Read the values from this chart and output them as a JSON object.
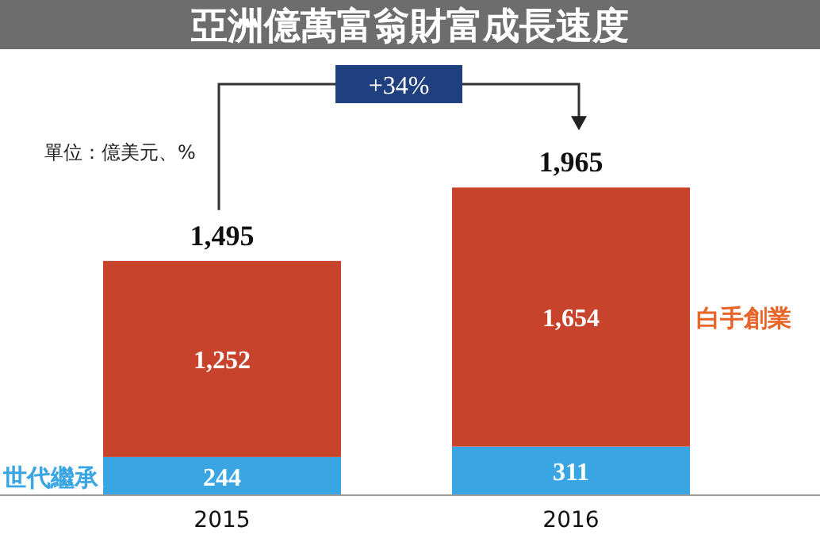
{
  "chart_data": {
    "type": "bar",
    "title": "亞洲億萬富翁財富成長速度",
    "subtitle": "單位：億美元、%",
    "categories": [
      "2015",
      "2016"
    ],
    "stacked": true,
    "series": [
      {
        "name": "世代繼承",
        "color": "#3aa5e3",
        "values": [
          244,
          311
        ],
        "value_labels": [
          "244",
          "311"
        ]
      },
      {
        "name": "白手創業",
        "color": "#c7432b",
        "values": [
          1252,
          1654
        ],
        "value_labels": [
          "1,252",
          "1,654"
        ]
      }
    ],
    "totals": [
      "1,495",
      "1,965"
    ],
    "annotations": [
      "+34%"
    ]
  }
}
